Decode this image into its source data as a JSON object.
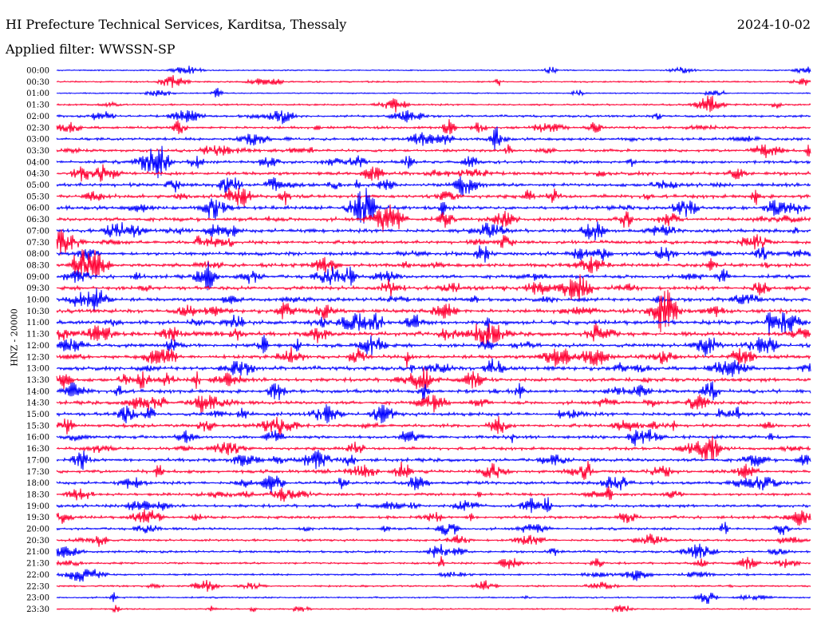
{
  "header": {
    "station": "HI Prefecture Technical Services, Karditsa, Thessaly",
    "date": "2024-10-02",
    "filter": "Applied filter: WWSSN-SP"
  },
  "chart_data": {
    "type": "seismogram",
    "title": "HI Prefecture Technical Services, Karditsa, Thessaly",
    "ylabel": "HNZ - 20000",
    "trace_colors": [
      "#0000ff",
      "#ff0033"
    ],
    "rows": [
      {
        "label": "00:00",
        "activity": 0.15
      },
      {
        "label": "00:30",
        "activity": 0.25
      },
      {
        "label": "01:00",
        "activity": 0.15
      },
      {
        "label": "01:30",
        "activity": 0.3
      },
      {
        "label": "02:00",
        "activity": 0.45
      },
      {
        "label": "02:30",
        "activity": 0.55
      },
      {
        "label": "03:00",
        "activity": 0.6
      },
      {
        "label": "03:30",
        "activity": 0.6
      },
      {
        "label": "04:00",
        "activity": 0.7
      },
      {
        "label": "04:30",
        "activity": 0.75
      },
      {
        "label": "05:00",
        "activity": 0.8
      },
      {
        "label": "05:30",
        "activity": 0.8
      },
      {
        "label": "06:00",
        "activity": 0.85
      },
      {
        "label": "06:30",
        "activity": 0.85
      },
      {
        "label": "07:00",
        "activity": 0.8
      },
      {
        "label": "07:30",
        "activity": 0.75
      },
      {
        "label": "08:00",
        "activity": 0.8
      },
      {
        "label": "08:30",
        "activity": 0.85
      },
      {
        "label": "09:00",
        "activity": 0.8
      },
      {
        "label": "09:30",
        "activity": 0.85
      },
      {
        "label": "10:00",
        "activity": 0.8
      },
      {
        "label": "10:30",
        "activity": 0.9
      },
      {
        "label": "11:00",
        "activity": 0.95
      },
      {
        "label": "11:30",
        "activity": 0.95
      },
      {
        "label": "12:00",
        "activity": 0.85
      },
      {
        "label": "12:30",
        "activity": 0.85
      },
      {
        "label": "13:00",
        "activity": 0.9
      },
      {
        "label": "13:30",
        "activity": 0.85
      },
      {
        "label": "14:00",
        "activity": 0.8
      },
      {
        "label": "14:30",
        "activity": 0.75
      },
      {
        "label": "15:00",
        "activity": 0.8
      },
      {
        "label": "15:30",
        "activity": 0.7
      },
      {
        "label": "16:00",
        "activity": 0.7
      },
      {
        "label": "16:30",
        "activity": 0.65
      },
      {
        "label": "17:00",
        "activity": 0.75
      },
      {
        "label": "17:30",
        "activity": 0.7
      },
      {
        "label": "18:00",
        "activity": 0.65
      },
      {
        "label": "18:30",
        "activity": 0.6
      },
      {
        "label": "19:00",
        "activity": 0.65
      },
      {
        "label": "19:30",
        "activity": 0.6
      },
      {
        "label": "20:00",
        "activity": 0.5
      },
      {
        "label": "20:30",
        "activity": 0.45
      },
      {
        "label": "21:00",
        "activity": 0.45
      },
      {
        "label": "21:30",
        "activity": 0.4
      },
      {
        "label": "22:00",
        "activity": 0.35
      },
      {
        "label": "22:30",
        "activity": 0.3
      },
      {
        "label": "23:00",
        "activity": 0.25
      },
      {
        "label": "23:30",
        "activity": 0.2
      }
    ]
  }
}
